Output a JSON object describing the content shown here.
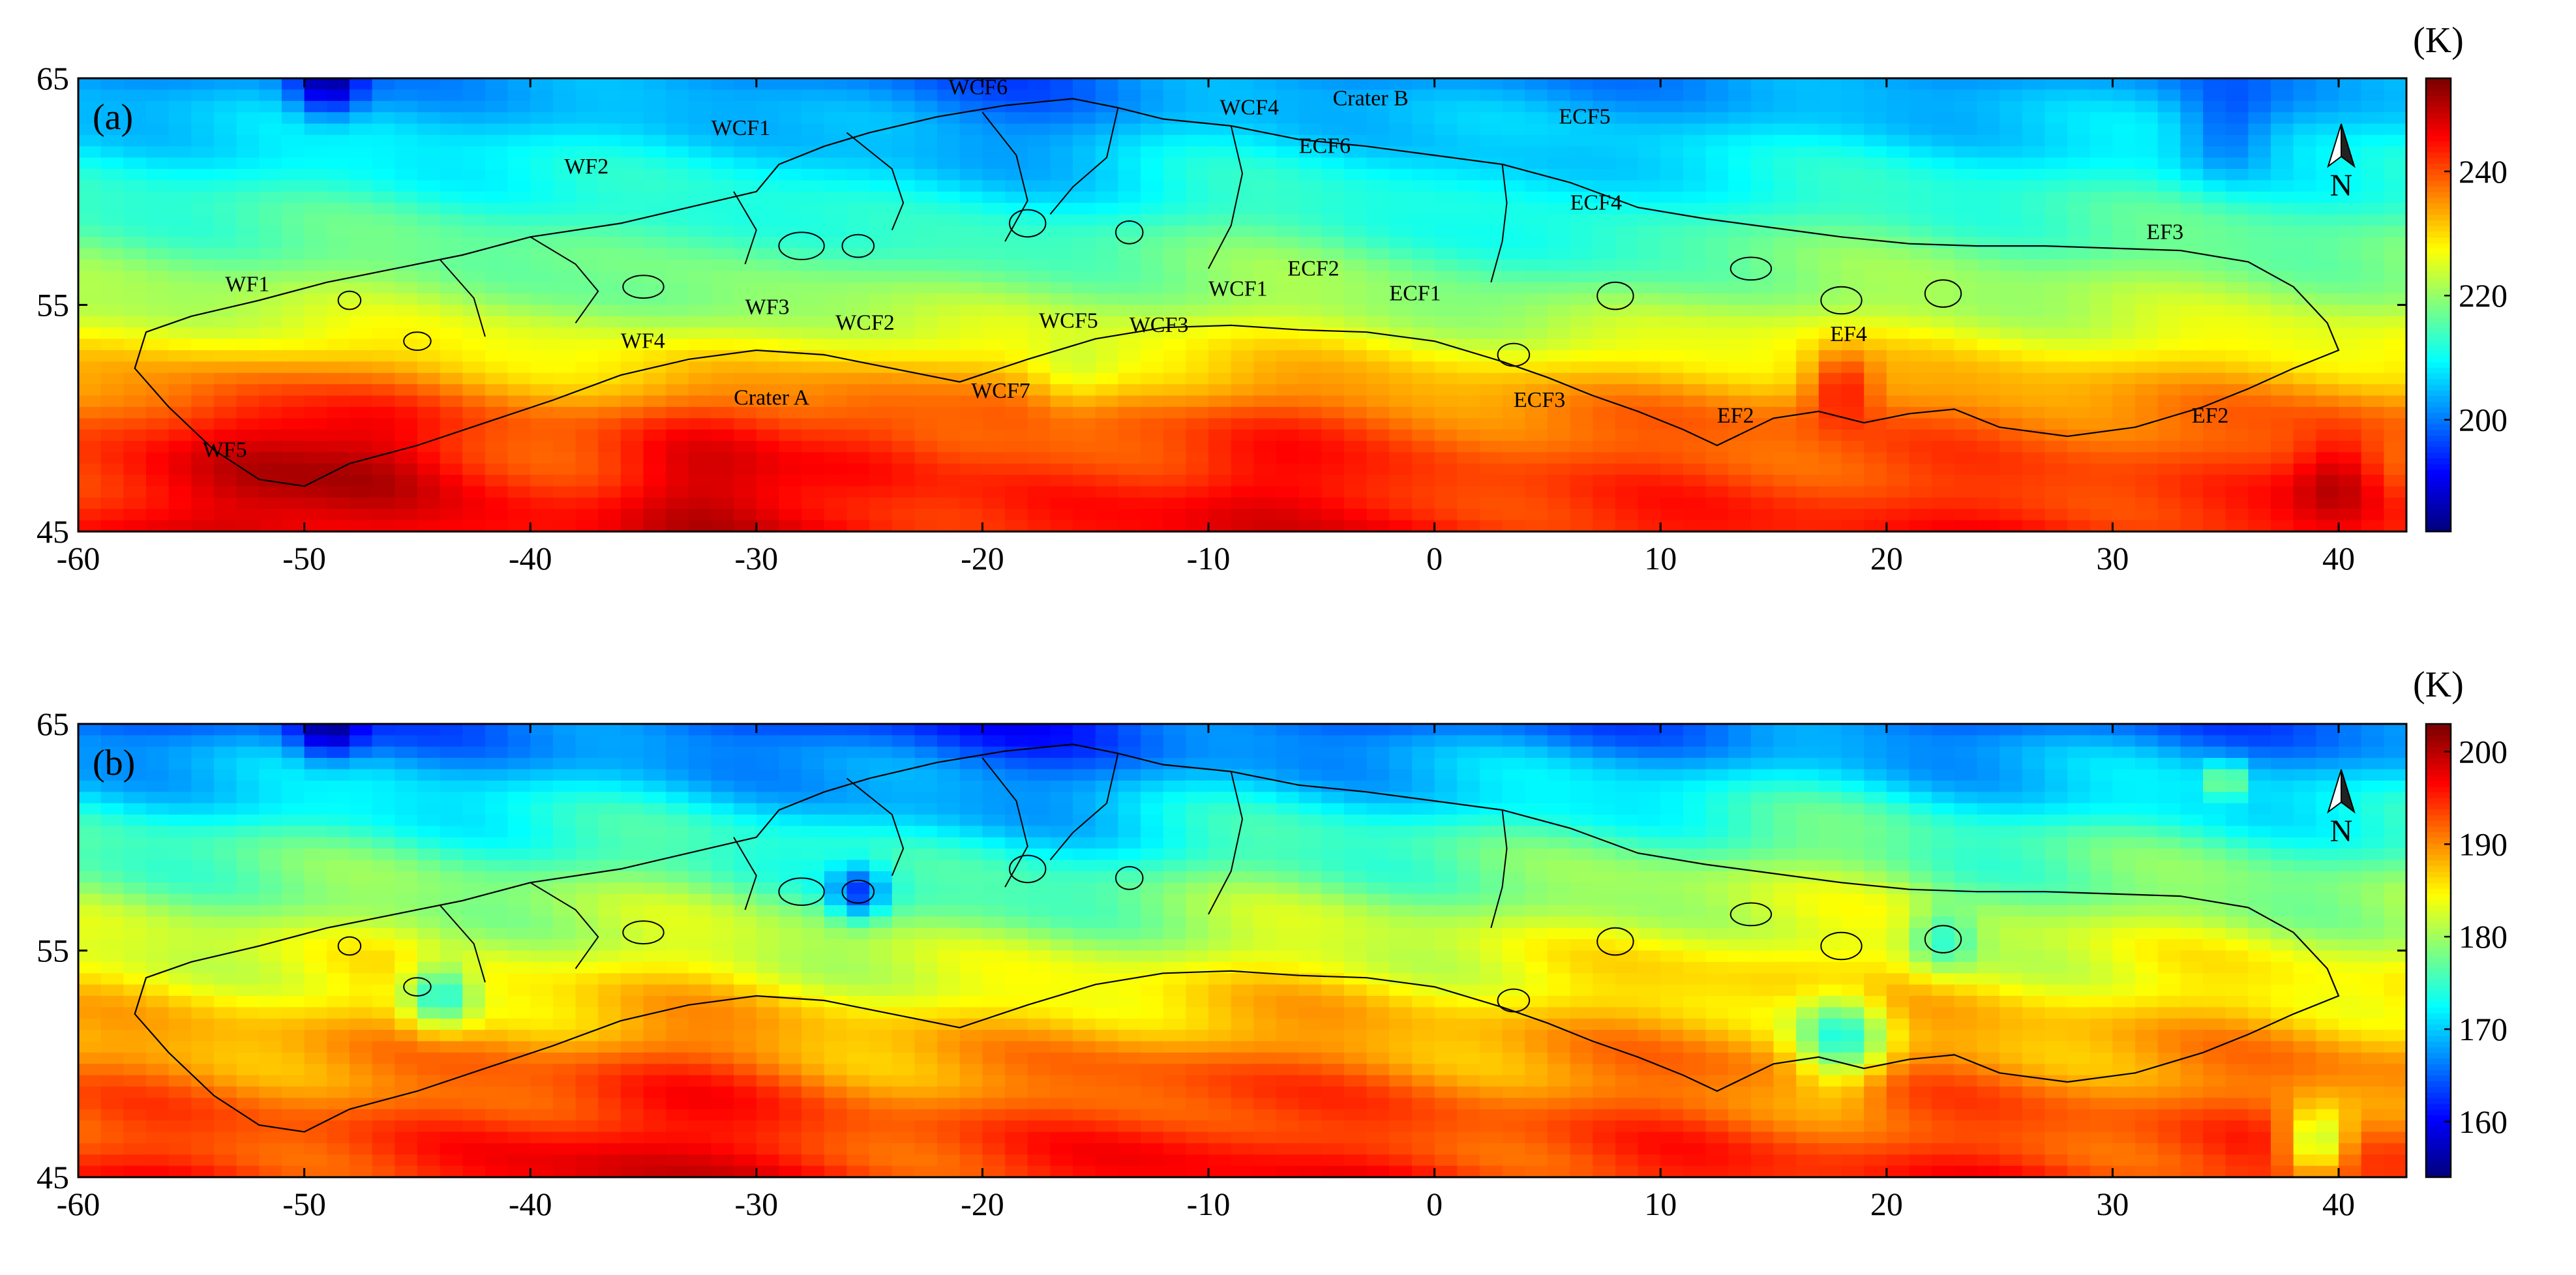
{
  "chart_data": [
    {
      "type": "heatmap",
      "panel_label": "(a)",
      "unit_label": "(K)",
      "xlim": [
        -60,
        43
      ],
      "ylim": [
        45,
        65
      ],
      "x_ticks": [
        -60,
        -50,
        -40,
        -30,
        -20,
        -10,
        0,
        10,
        20,
        30,
        40
      ],
      "y_ticks": [
        45,
        55,
        65
      ],
      "colorbar": {
        "range": [
          182,
          255
        ],
        "ticks": [
          200,
          220,
          240
        ],
        "colormap": "jet"
      },
      "compass_label": "N",
      "field": {
        "base": [
          [
            45,
            244
          ],
          [
            50,
            238
          ],
          [
            55,
            222
          ],
          [
            60,
            212
          ],
          [
            65,
            202
          ]
        ],
        "anomalies": [
          {
            "x": -52,
            "y": 48.5,
            "r": 4.0,
            "d": 10
          },
          {
            "x": -47,
            "y": 48,
            "r": 3.5,
            "d": 8
          },
          {
            "x": -33,
            "y": 47,
            "r": 4.0,
            "d": 8
          },
          {
            "x": -25,
            "y": 49,
            "r": 3.5,
            "d": 5
          },
          {
            "x": -8,
            "y": 47,
            "r": 4.0,
            "d": 6
          },
          {
            "x": 18,
            "y": 51.5,
            "r": 1.5,
            "d": 12
          },
          {
            "x": 40,
            "y": 47.5,
            "r": 2.0,
            "d": 9
          },
          {
            "x": -16,
            "y": 51.5,
            "r": 2.0,
            "d": -5
          },
          {
            "x": -34,
            "y": 55,
            "r": 4.0,
            "d": -4
          },
          {
            "x": 5,
            "y": 58,
            "r": 5.0,
            "d": -6
          },
          {
            "x": -49,
            "y": 64.8,
            "r": 1.5,
            "d": -18
          },
          {
            "x": 35,
            "y": 62.5,
            "r": 2.0,
            "d": -8
          },
          {
            "x": -20,
            "y": 62,
            "r": 6.0,
            "d": -6
          }
        ]
      },
      "annotations": [
        {
          "text": "WCF6",
          "x": -21.5,
          "y": 64.3
        },
        {
          "text": "WCF4",
          "x": -9.5,
          "y": 63.4
        },
        {
          "text": "Crater B",
          "x": -4.5,
          "y": 63.8
        },
        {
          "text": "WCF1",
          "x": -32,
          "y": 62.5
        },
        {
          "text": "ECF5",
          "x": 5.5,
          "y": 63.0
        },
        {
          "text": "WF2",
          "x": -38.5,
          "y": 60.8
        },
        {
          "text": "ECF6",
          "x": -6,
          "y": 61.7
        },
        {
          "text": "ECF4",
          "x": 6,
          "y": 59.2
        },
        {
          "text": "EF3",
          "x": 31.5,
          "y": 57.9
        },
        {
          "text": "WF1",
          "x": -53.5,
          "y": 55.6
        },
        {
          "text": "WCF1",
          "x": -10,
          "y": 55.4
        },
        {
          "text": "ECF2",
          "x": -6.5,
          "y": 56.3
        },
        {
          "text": "ECF1",
          "x": -2,
          "y": 55.2
        },
        {
          "text": "WF3",
          "x": -30.5,
          "y": 54.6
        },
        {
          "text": "WCF2",
          "x": -26.5,
          "y": 53.9
        },
        {
          "text": "WCF5",
          "x": -17.5,
          "y": 54.0
        },
        {
          "text": "WCF3",
          "x": -13.5,
          "y": 53.8
        },
        {
          "text": "WF4",
          "x": -36,
          "y": 53.1
        },
        {
          "text": "EF4",
          "x": 17.5,
          "y": 53.4
        },
        {
          "text": "WCF7",
          "x": -20.5,
          "y": 50.9
        },
        {
          "text": "Crater A",
          "x": -31,
          "y": 50.6
        },
        {
          "text": "ECF3",
          "x": 3.5,
          "y": 50.5
        },
        {
          "text": "EF2",
          "x": 12.5,
          "y": 49.8
        },
        {
          "text": "EF2",
          "x": 33.5,
          "y": 49.8
        },
        {
          "text": "WF5",
          "x": -54.5,
          "y": 48.3
        }
      ]
    },
    {
      "type": "heatmap",
      "panel_label": "(b)",
      "unit_label": "(K)",
      "xlim": [
        -60,
        43
      ],
      "ylim": [
        45,
        65
      ],
      "x_ticks": [
        -60,
        -50,
        -40,
        -30,
        -20,
        -10,
        0,
        10,
        20,
        30,
        40
      ],
      "y_ticks": [
        45,
        55,
        65
      ],
      "colorbar": {
        "range": [
          154,
          203
        ],
        "ticks": [
          160,
          170,
          180,
          190,
          200
        ],
        "colormap": "jet"
      },
      "compass_label": "N",
      "field": {
        "base": [
          [
            45,
            195
          ],
          [
            50,
            190
          ],
          [
            55,
            183
          ],
          [
            60,
            175
          ],
          [
            65,
            165
          ]
        ],
        "anomalies": [
          {
            "x": -35,
            "y": 47,
            "r": 5.0,
            "d": 5
          },
          {
            "x": -10,
            "y": 48,
            "r": 5.0,
            "d": 3
          },
          {
            "x": -44,
            "y": 53,
            "r": 1.5,
            "d": -12
          },
          {
            "x": 18,
            "y": 51,
            "r": 2.0,
            "d": -14
          },
          {
            "x": 39,
            "y": 46.5,
            "r": 1.5,
            "d": -14
          },
          {
            "x": -25.5,
            "y": 57.5,
            "r": 1.2,
            "d": -12
          },
          {
            "x": 22.5,
            "y": 55.5,
            "r": 1.5,
            "d": -8
          },
          {
            "x": -49,
            "y": 64.8,
            "r": 1.5,
            "d": -10
          },
          {
            "x": 35,
            "y": 62.5,
            "r": 0.8,
            "d": 10
          },
          {
            "x": -20,
            "y": 61,
            "r": 8.0,
            "d": -4
          },
          {
            "x": 15,
            "y": 58,
            "r": 6.0,
            "d": 3
          }
        ]
      },
      "annotations": []
    }
  ]
}
